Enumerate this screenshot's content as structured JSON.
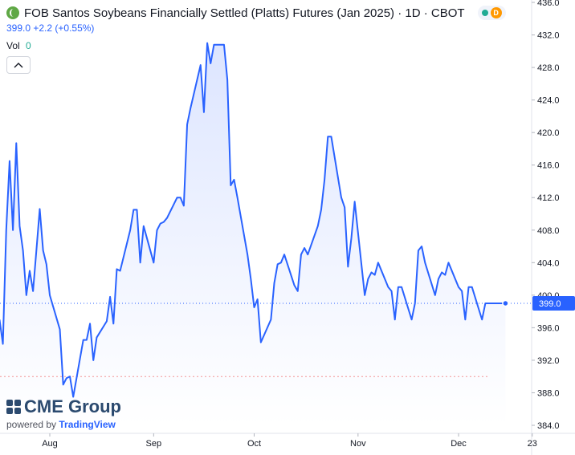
{
  "header": {
    "title": "FOB Santos Soybeans Financially Settled (Platts) Futures (Jan 2025) · 1D · CBOT",
    "price_line": "399.0  +2.2 (+0.55%)",
    "vol_label": "Vol",
    "vol_value": "0",
    "status_badge": "D"
  },
  "branding": {
    "logo": "CME Group",
    "powered_prefix": "powered by",
    "powered_brand": "TradingView"
  },
  "colors": {
    "line": "#2962ff",
    "area_top": "#d6e0ff",
    "area_bottom": "#ffffff",
    "last_price_bg": "#2962ff",
    "axis_text": "#131722",
    "low_line": "#ef5350"
  },
  "chart_data": {
    "type": "area",
    "title": "FOB Santos Soybeans Financially Settled (Platts) Futures (Jan 2025)",
    "interval": "1D",
    "exchange": "CBOT",
    "last_price": 399.0,
    "last_price_label": "399.0",
    "change": 2.2,
    "change_pct": 0.55,
    "reference_level": 390.0,
    "ylim": [
      384,
      436
    ],
    "y_ticks": [
      436.0,
      432.0,
      428.0,
      424.0,
      420.0,
      416.0,
      412.0,
      408.0,
      404.0,
      400.0,
      396.0,
      392.0,
      388.0,
      384.0
    ],
    "y_tick_labels": [
      "436.0",
      "432.0",
      "428.0",
      "424.0",
      "420.0",
      "416.0",
      "412.0",
      "408.0",
      "404.0",
      "400.0",
      "396.0",
      "392.0",
      "388.0",
      "384.0"
    ],
    "x_tick_labels": [
      "Aug",
      "Sep",
      "Oct",
      "Nov",
      "Dec",
      "23"
    ],
    "x_tick_days": [
      0,
      31,
      61,
      92,
      122,
      144
    ],
    "x_axis_day0": "2024-08-01",
    "x_days": [
      -15,
      -14,
      -13,
      -12,
      -11,
      -10,
      -9,
      -8,
      -7,
      -6,
      -5,
      -4,
      -3,
      -2,
      -1,
      0,
      3,
      4,
      5,
      6,
      7,
      10,
      11,
      12,
      13,
      14,
      17,
      18,
      19,
      20,
      21,
      24,
      25,
      26,
      27,
      28,
      31,
      32,
      33,
      34,
      35,
      38,
      39,
      40,
      41,
      42,
      45,
      46,
      47,
      48,
      49,
      52,
      53,
      54,
      55,
      56,
      59,
      60,
      61,
      62,
      63,
      66,
      67,
      68,
      69,
      70,
      73,
      74,
      75,
      76,
      77,
      80,
      81,
      82,
      83,
      84,
      87,
      88,
      89,
      90,
      91,
      94,
      95,
      96,
      97,
      98,
      101,
      102,
      103,
      104,
      105,
      108,
      109,
      110,
      111,
      112,
      115,
      116,
      117,
      118,
      119,
      122,
      123,
      124,
      125,
      126,
      129,
      130,
      131,
      132,
      133,
      136
    ],
    "values": [
      397.0,
      394.0,
      408.0,
      416.5,
      408.0,
      418.7,
      408.5,
      405.5,
      400.0,
      403.0,
      400.5,
      405.5,
      410.6,
      405.5,
      403.8,
      400.0,
      395.8,
      389.0,
      389.8,
      390.0,
      387.5,
      394.5,
      394.5,
      396.5,
      392.0,
      394.8,
      396.8,
      399.8,
      396.5,
      403.2,
      403.0,
      408.0,
      410.5,
      410.5,
      404.0,
      408.5,
      404.0,
      408.0,
      408.8,
      409.0,
      409.5,
      412.0,
      412.0,
      411.0,
      421.0,
      423.0,
      428.3,
      422.5,
      431.0,
      428.5,
      430.8,
      430.8,
      426.5,
      413.5,
      414.2,
      412.0,
      405.0,
      402.0,
      398.5,
      399.5,
      394.2,
      397.0,
      401.5,
      403.8,
      404.0,
      405.0,
      401.2,
      400.5,
      405.0,
      405.8,
      405.0,
      408.5,
      410.5,
      414.2,
      419.5,
      419.5,
      412.0,
      410.8,
      403.5,
      407.0,
      411.5,
      400.0,
      402.0,
      402.8,
      402.5,
      404.0,
      401.0,
      400.5,
      397.0,
      401.0,
      401.0,
      397.0,
      399.0,
      405.5,
      406.0,
      404.0,
      400.0,
      402.0,
      402.8,
      402.5,
      404.0,
      401.0,
      400.5,
      397.0,
      401.0,
      401.0,
      397.0,
      399.0,
      399.0,
      399.0,
      399.0,
      399.0
    ]
  }
}
